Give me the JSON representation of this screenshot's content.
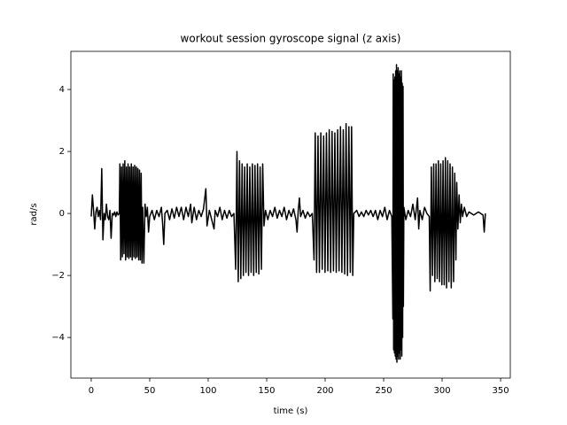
{
  "chart_data": {
    "type": "line",
    "title": "workout session gyroscope signal (z axis)",
    "xlabel": "time (s)",
    "ylabel": "rad/s",
    "color": "#000000",
    "xlim": [
      -17.4,
      358.3
    ],
    "ylim": [
      -5.31,
      5.23
    ],
    "xticks": [
      0,
      50,
      100,
      150,
      200,
      250,
      300,
      350
    ],
    "yticks": [
      {
        "value": -4,
        "label": "−4"
      },
      {
        "value": -2,
        "label": "−2"
      },
      0,
      2,
      4
    ],
    "x": [
      0,
      1,
      2,
      3,
      4,
      5,
      6,
      7,
      8,
      9,
      10,
      11,
      12,
      13,
      14,
      15,
      16,
      17,
      18,
      19,
      20,
      21,
      22,
      23,
      24,
      24.5,
      25.2,
      25.9,
      26.6,
      27.3,
      28,
      28.7,
      29.4,
      30.1,
      30.8,
      31.5,
      32.2,
      32.9,
      33.6,
      34.3,
      35,
      35.7,
      36.4,
      37.1,
      37.8,
      38.5,
      39.2,
      39.9,
      40.6,
      41.3,
      42,
      42.7,
      43.4,
      44,
      45,
      46,
      47,
      48,
      49,
      50,
      52,
      54,
      56,
      58,
      60,
      61,
      62,
      63,
      65,
      67,
      69,
      71,
      73,
      75,
      77,
      79,
      81,
      83,
      85,
      86,
      88,
      90,
      92,
      94,
      96,
      98,
      99,
      101,
      103,
      105,
      106,
      108,
      110,
      112,
      114,
      116,
      118,
      120,
      122,
      123.5,
      124.6,
      125.7,
      126.8,
      127.9,
      129,
      130.1,
      131.2,
      132.3,
      133.4,
      134.5,
      135.6,
      136.7,
      137.8,
      138.9,
      140,
      141.1,
      142.2,
      143.3,
      144.4,
      145.5,
      146.6,
      147.7,
      149,
      151,
      153,
      155,
      157,
      159,
      161,
      163,
      165,
      167,
      169,
      171,
      173,
      175,
      176,
      177,
      178,
      179,
      181,
      183,
      185,
      187,
      189,
      190.5,
      191.5,
      192.7,
      193.9,
      195.1,
      196.3,
      197.5,
      198.7,
      199.9,
      201.1,
      202.3,
      203.5,
      204.7,
      205.9,
      207.1,
      208.3,
      209.5,
      210.7,
      211.9,
      213.1,
      214.3,
      215.5,
      216.7,
      217.9,
      219.1,
      220.3,
      221.5,
      222.6,
      223.6,
      224.5,
      227,
      229,
      231,
      233,
      235,
      237,
      239,
      241,
      243,
      245,
      247,
      249,
      251,
      253,
      255,
      257,
      257.9,
      258.2,
      258.55,
      258.9,
      259.25,
      259.6,
      259.95,
      260.3,
      260.65,
      261,
      261.35,
      261.7,
      262.05,
      262.4,
      262.75,
      263.1,
      263.45,
      263.8,
      264.15,
      264.5,
      264.85,
      265.2,
      265.55,
      265.9,
      266.25,
      266.6,
      266.9,
      267.3,
      269,
      271,
      273,
      275,
      277,
      279,
      280,
      281,
      283,
      285,
      287,
      289,
      289.8,
      290.8,
      291.8,
      292.8,
      293.8,
      294.8,
      295.8,
      296.8,
      297.8,
      298.8,
      299.8,
      300.8,
      301.8,
      302.8,
      303.8,
      304.8,
      305.8,
      306.8,
      307.8,
      308.8,
      309.8,
      310.8,
      311.8,
      312.5,
      313.5,
      314.5,
      315.5,
      316.5,
      317.5,
      319,
      321,
      323,
      325,
      327,
      329,
      331,
      333,
      335,
      336,
      337
    ],
    "values": [
      -0.1,
      0.6,
      0.1,
      -0.5,
      0.05,
      0.2,
      -0.1,
      0.1,
      -0.2,
      1.45,
      -0.85,
      0.0,
      -0.2,
      0.3,
      -0.1,
      -0.2,
      0.1,
      -0.8,
      0.0,
      -0.05,
      0.05,
      -0.1,
      0.05,
      -0.05,
      0.0,
      1.6,
      -1.5,
      1.5,
      -1.4,
      1.6,
      -1.3,
      1.7,
      -1.5,
      1.5,
      -1.4,
      1.6,
      -1.45,
      1.5,
      -1.4,
      1.6,
      -1.5,
      1.5,
      -1.4,
      1.55,
      -1.45,
      1.5,
      -1.4,
      1.45,
      -1.5,
      1.4,
      -1.5,
      1.3,
      -1.6,
      0.2,
      -1.6,
      0.3,
      -0.1,
      0.2,
      -0.6,
      -0.1,
      0.1,
      -0.2,
      0.1,
      -0.1,
      0.2,
      -0.3,
      -1.0,
      0.0,
      0.1,
      -0.2,
      0.15,
      -0.15,
      0.2,
      -0.1,
      0.2,
      -0.2,
      0.2,
      -0.1,
      0.3,
      -0.3,
      0.2,
      -0.2,
      0.1,
      -0.1,
      0.15,
      0.8,
      -0.4,
      0.1,
      -0.2,
      -0.5,
      0.1,
      -0.1,
      0.2,
      -0.2,
      0.1,
      -0.15,
      0.1,
      -0.1,
      0.0,
      -1.8,
      2.0,
      -2.2,
      1.7,
      -2.1,
      1.6,
      -2.0,
      1.5,
      -1.9,
      1.6,
      -2.0,
      1.5,
      -1.9,
      1.6,
      -2.0,
      1.55,
      -1.9,
      1.6,
      -1.95,
      1.5,
      -1.8,
      1.6,
      -0.4,
      0.1,
      -0.2,
      0.1,
      -0.1,
      0.2,
      -0.15,
      0.1,
      -0.1,
      0.2,
      -0.2,
      0.1,
      -0.1,
      0.15,
      -0.2,
      -0.6,
      0.1,
      0.5,
      -0.1,
      0.1,
      -0.15,
      0.05,
      -0.1,
      0.0,
      -1.5,
      2.6,
      -1.9,
      2.5,
      -1.9,
      2.6,
      -1.8,
      2.5,
      -1.9,
      2.6,
      -1.85,
      2.7,
      -1.9,
      2.65,
      -1.85,
      2.6,
      -1.9,
      2.7,
      -1.85,
      2.8,
      -1.9,
      2.7,
      -1.95,
      2.9,
      -2.0,
      2.8,
      -1.9,
      2.8,
      -2.0,
      0.0,
      0.1,
      -0.1,
      0.05,
      -0.1,
      0.1,
      -0.05,
      0.1,
      -0.1,
      0.1,
      -0.2,
      0.1,
      -0.1,
      0.2,
      -0.2,
      0.1,
      -0.1,
      -3.4,
      4.5,
      -4.4,
      4.3,
      -4.5,
      4.4,
      -4.6,
      4.6,
      -4.7,
      4.8,
      -4.8,
      4.6,
      -4.6,
      4.7,
      -4.7,
      4.5,
      -4.5,
      4.6,
      -4.7,
      4.4,
      -4.4,
      4.6,
      -4.6,
      4.2,
      -4.0,
      4.1,
      -3.0,
      0.2,
      -0.2,
      0.1,
      -0.1,
      0.3,
      -0.2,
      0.5,
      -0.5,
      0.1,
      -0.2,
      0.2,
      0.0,
      -0.1,
      -2.5,
      1.5,
      -2.0,
      1.6,
      -2.2,
      1.6,
      -2.1,
      1.7,
      -2.2,
      1.6,
      -2.3,
      1.7,
      -2.3,
      1.8,
      -2.4,
      1.7,
      -2.2,
      1.6,
      -2.4,
      1.5,
      -2.2,
      1.3,
      -1.5,
      1.0,
      -0.5,
      0.6,
      -0.3,
      0.3,
      -0.1,
      0.2,
      -0.1,
      0.05,
      0.0,
      -0.05,
      0.0,
      0.05,
      0.0,
      -0.05,
      -0.6,
      0.0
    ]
  }
}
